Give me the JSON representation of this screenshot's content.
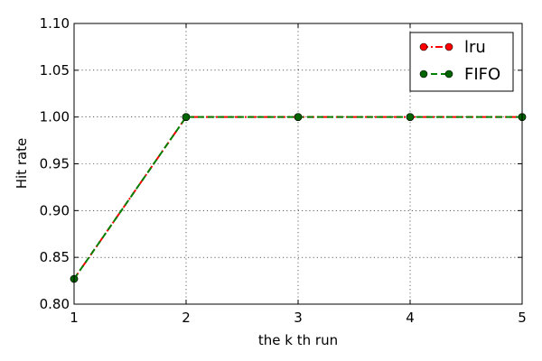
{
  "chart_data": {
    "type": "line",
    "xlabel": "the k th run",
    "ylabel": "Hit rate",
    "xlim": [
      1,
      5
    ],
    "ylim": [
      0.8,
      1.1
    ],
    "xticks": [
      1,
      2,
      3,
      4,
      5
    ],
    "xtick_labels": [
      "1",
      "2",
      "3",
      "4",
      "5"
    ],
    "yticks": [
      0.8,
      0.85,
      0.9,
      0.95,
      1.0,
      1.05,
      1.1
    ],
    "ytick_labels": [
      "0.80",
      "0.85",
      "0.90",
      "0.95",
      "1.00",
      "1.05",
      "1.10"
    ],
    "grid": true,
    "legend_position": "top-right",
    "x": [
      1,
      2,
      3,
      4,
      5
    ],
    "series": [
      {
        "name": "lru",
        "values": [
          0.827,
          1.0,
          1.0,
          1.0,
          1.0
        ],
        "color": "#ff0000",
        "line_style": "dash-dot",
        "marker_color": "#ff0000"
      },
      {
        "name": "FIFO",
        "values": [
          0.827,
          1.0,
          1.0,
          1.0,
          1.0
        ],
        "color": "#008000",
        "line_style": "dashed",
        "marker_color": "#006400"
      }
    ]
  }
}
